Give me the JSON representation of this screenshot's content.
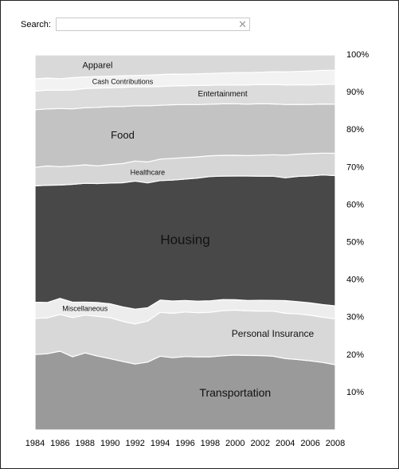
{
  "search": {
    "label": "Search:",
    "value": ""
  },
  "chart_data": {
    "type": "area",
    "stacked": true,
    "normalized": true,
    "x": [
      1984,
      1985,
      1986,
      1987,
      1988,
      1989,
      1990,
      1991,
      1992,
      1993,
      1994,
      1995,
      1996,
      1997,
      1998,
      1999,
      2000,
      2001,
      2002,
      2003,
      2004,
      2005,
      2006,
      2007,
      2008
    ],
    "x_ticks": [
      1984,
      1986,
      1988,
      1990,
      1992,
      1994,
      1996,
      1998,
      2000,
      2002,
      2004,
      2006,
      2008
    ],
    "y_ticks": [
      {
        "value": 10,
        "label": "10%"
      },
      {
        "value": 20,
        "label": "20%"
      },
      {
        "value": 30,
        "label": "30%"
      },
      {
        "value": 40,
        "label": "40%"
      },
      {
        "value": 50,
        "label": "50%"
      },
      {
        "value": 60,
        "label": "60%"
      },
      {
        "value": 70,
        "label": "70%"
      },
      {
        "value": 80,
        "label": "80%"
      },
      {
        "value": 90,
        "label": "90%"
      },
      {
        "value": 100,
        "label": "100%"
      }
    ],
    "ylim": [
      0,
      100
    ],
    "series": [
      {
        "name": "Transportation",
        "color": "#9a9a9a",
        "label_at": 2000,
        "label_size": 14,
        "values": [
          19.6,
          19.8,
          20.6,
          19.0,
          20.0,
          19.2,
          18.5,
          17.8,
          17.4,
          17.9,
          19.2,
          18.9,
          19.1,
          19.0,
          19.0,
          19.3,
          19.5,
          19.4,
          19.4,
          19.3,
          18.6,
          18.4,
          18.0,
          17.6,
          17.0
        ]
      },
      {
        "name": "Personal Insurance",
        "color": "#d8d8d8",
        "label_at": 2003,
        "label_size": 12,
        "values": [
          9.4,
          9.3,
          9.6,
          10.2,
          9.8,
          10.3,
          10.6,
          10.4,
          10.6,
          10.8,
          11.4,
          11.6,
          11.6,
          11.5,
          11.6,
          11.7,
          11.7,
          11.6,
          11.6,
          11.8,
          11.8,
          11.9,
          11.9,
          11.8,
          11.9
        ]
      },
      {
        "name": "Miscellaneous",
        "color": "#ededed",
        "label_at": 1988,
        "label_size": 9,
        "values": [
          4.2,
          4.0,
          4.2,
          4.0,
          3.4,
          3.6,
          3.6,
          3.8,
          3.9,
          3.5,
          3.2,
          3.2,
          3.0,
          3.0,
          3.0,
          2.9,
          2.7,
          2.7,
          2.8,
          2.8,
          3.3,
          3.2,
          3.2,
          3.3,
          3.4
        ]
      },
      {
        "name": "Housing",
        "color": "#484848",
        "label_at": 1996,
        "label_size": 17,
        "values": [
          30.2,
          30.4,
          29.6,
          30.6,
          30.8,
          30.9,
          31.3,
          32.2,
          33.8,
          32.9,
          31.1,
          31.6,
          31.6,
          32.0,
          32.3,
          32.1,
          32.2,
          32.4,
          32.3,
          32.5,
          32.0,
          32.7,
          33.1,
          33.8,
          33.9
        ]
      },
      {
        "name": "Healthcare",
        "color": "#d6d6d6",
        "label_at": 1993,
        "label_size": 9,
        "values": [
          4.8,
          5.0,
          4.8,
          4.8,
          4.8,
          4.6,
          4.8,
          5.0,
          5.3,
          5.5,
          5.6,
          5.7,
          5.6,
          5.5,
          5.4,
          5.4,
          5.4,
          5.3,
          5.5,
          5.6,
          5.9,
          5.8,
          5.8,
          5.7,
          5.8
        ]
      },
      {
        "name": "Food",
        "color": "#c3c3c3",
        "label_at": 1991,
        "label_size": 13,
        "values": [
          15.0,
          14.8,
          15.2,
          14.8,
          14.8,
          15.2,
          15.0,
          14.8,
          14.6,
          14.8,
          14.0,
          14.0,
          13.8,
          13.6,
          13.4,
          13.4,
          13.4,
          13.4,
          13.4,
          13.3,
          13.2,
          13.0,
          12.8,
          12.8,
          12.8
        ]
      },
      {
        "name": "Entertainment",
        "color": "#dcdcdc",
        "label_at": 1999,
        "label_size": 10,
        "values": [
          4.8,
          4.9,
          4.8,
          4.9,
          5.0,
          5.0,
          4.9,
          5.0,
          5.0,
          5.0,
          4.9,
          4.9,
          4.9,
          5.0,
          4.9,
          4.9,
          4.9,
          5.0,
          5.0,
          5.1,
          5.1,
          5.1,
          5.1,
          5.1,
          5.2
        ]
      },
      {
        "name": "Cash Contributions",
        "color": "#f2f2f2",
        "label_at": 1991,
        "label_size": 9,
        "values": [
          3.2,
          3.1,
          3.0,
          3.2,
          3.0,
          3.0,
          3.0,
          3.0,
          3.0,
          3.1,
          3.1,
          3.1,
          3.0,
          3.0,
          3.1,
          3.1,
          3.2,
          3.2,
          3.2,
          3.3,
          3.4,
          3.5,
          3.6,
          3.7,
          3.6
        ]
      },
      {
        "name": "Apparel",
        "color": "#d9d9d9",
        "label_at": 1989,
        "label_size": 11,
        "values": [
          6.2,
          6.0,
          6.2,
          5.9,
          5.7,
          5.6,
          5.5,
          5.4,
          5.4,
          5.3,
          5.1,
          5.0,
          5.0,
          4.9,
          4.8,
          4.7,
          4.6,
          4.6,
          4.5,
          4.4,
          4.4,
          4.3,
          4.2,
          4.0,
          4.0
        ]
      }
    ]
  }
}
